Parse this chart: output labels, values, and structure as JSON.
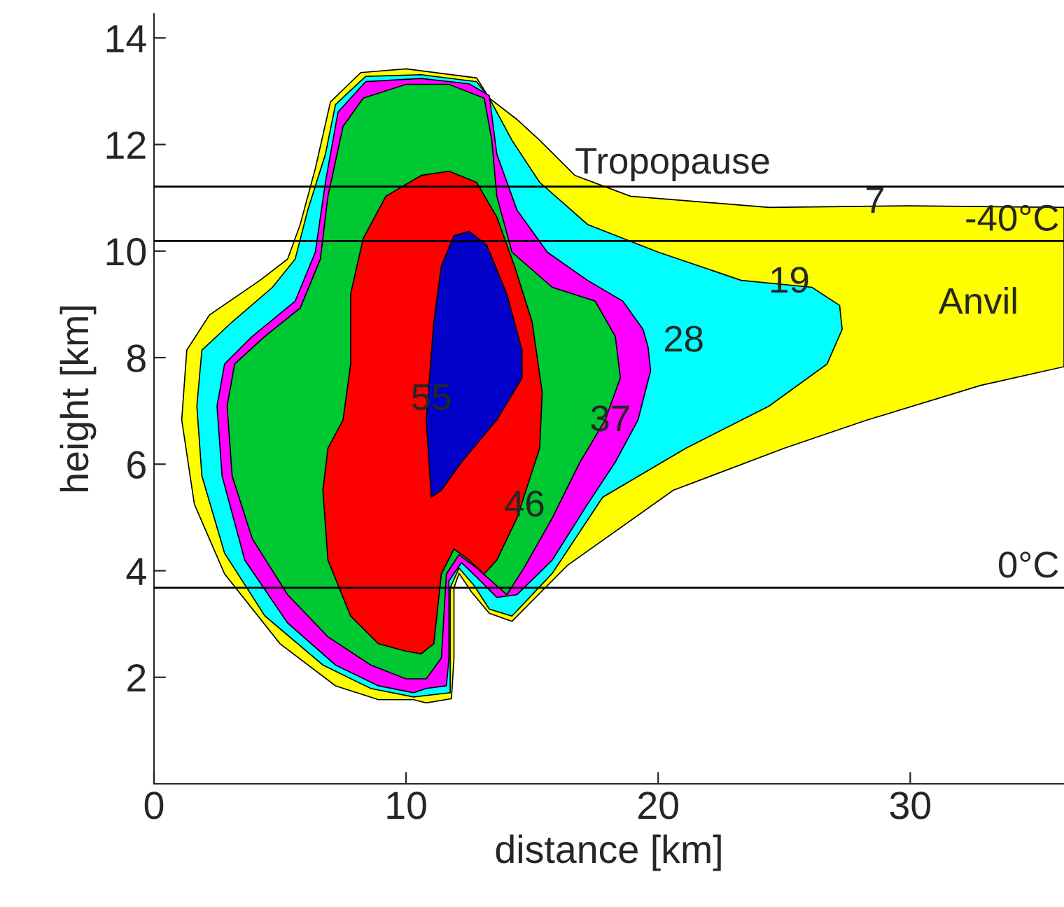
{
  "chart_data": {
    "type": "area",
    "xlabel": "distance [km]",
    "ylabel": "height [km]",
    "xlim": [
      0,
      36.1
    ],
    "ylim": [
      0,
      14.45
    ],
    "xticks": [
      0,
      10,
      20,
      30
    ],
    "yticks": [
      2,
      4,
      6,
      8,
      10,
      12,
      14
    ],
    "grid": false,
    "series": [
      {
        "color": "#ffff00",
        "x": [
          10.3,
          8.9,
          7.2,
          5.0,
          2.8,
          1.6,
          1.1,
          1.3,
          2.2,
          4.2,
          5.3,
          5.8,
          6.4,
          7.0,
          8.2,
          10.0,
          12.8,
          13.3,
          14.4,
          15.3,
          16.7,
          18.9,
          24.4,
          30.0,
          36.1,
          36.1,
          32.8,
          28.3,
          25.0,
          20.6,
          16.4,
          14.2,
          13.3,
          12.6,
          12.1,
          11.9,
          11.9,
          11.8,
          10.8
        ],
        "values": [
          1.58,
          1.58,
          1.84,
          2.63,
          3.94,
          5.25,
          6.83,
          8.14,
          8.8,
          9.45,
          9.85,
          10.5,
          11.55,
          12.8,
          13.35,
          13.42,
          13.25,
          12.87,
          12.47,
          12.08,
          11.42,
          11.03,
          10.82,
          10.85,
          10.82,
          7.83,
          7.48,
          6.83,
          6.3,
          5.51,
          4.1,
          3.05,
          3.2,
          3.6,
          3.95,
          3.68,
          2.36,
          1.6,
          1.52
        ]
      },
      {
        "color": "#00ffff",
        "x": [
          10.3,
          8.6,
          6.7,
          4.4,
          2.8,
          1.9,
          1.7,
          1.9,
          3.1,
          4.7,
          5.6,
          6.1,
          6.8,
          7.2,
          8.4,
          10.6,
          12.8,
          13.3,
          14.2,
          15.3,
          17.2,
          20.0,
          23.3,
          26.1,
          27.2,
          27.3,
          26.7,
          24.4,
          21.1,
          17.8,
          15.8,
          14.2,
          13.3,
          12.7,
          12.1,
          11.75,
          11.75,
          11.75
        ],
        "values": [
          1.63,
          1.79,
          2.23,
          3.15,
          4.33,
          5.78,
          7.09,
          8.14,
          8.67,
          9.32,
          9.85,
          10.77,
          11.82,
          12.75,
          13.28,
          13.31,
          13.18,
          12.87,
          12.08,
          11.29,
          10.5,
          9.98,
          9.45,
          9.32,
          8.98,
          8.53,
          7.88,
          7.09,
          6.3,
          5.38,
          3.95,
          3.15,
          3.28,
          3.72,
          4.05,
          3.68,
          2.36,
          1.71
        ]
      },
      {
        "color": "#ff00ff",
        "x": [
          10.3,
          8.9,
          7.2,
          5.3,
          3.6,
          2.7,
          2.5,
          2.8,
          3.9,
          5.6,
          6.4,
          6.8,
          7.3,
          8.4,
          10.6,
          12.5,
          13.3,
          13.6,
          14.4,
          15.6,
          17.2,
          18.6,
          19.4,
          19.6,
          19.7,
          19.2,
          18.3,
          17.2,
          15.8,
          14.4,
          13.6,
          12.8,
          12.2,
          11.7,
          11.7,
          11.6,
          10.8
        ],
        "values": [
          1.71,
          1.84,
          2.23,
          3.02,
          4.2,
          5.78,
          7.09,
          7.88,
          8.4,
          9.06,
          9.98,
          11.29,
          12.61,
          13.18,
          13.24,
          13.14,
          12.92,
          11.82,
          10.77,
          9.98,
          9.45,
          9.06,
          8.53,
          8.2,
          7.75,
          6.83,
          6.04,
          5.25,
          4.2,
          3.55,
          3.5,
          3.88,
          4.15,
          3.81,
          2.36,
          1.84,
          1.79
        ]
      },
      {
        "color": "#00c832",
        "x": [
          10.0,
          8.6,
          6.9,
          5.3,
          3.9,
          3.1,
          2.9,
          3.2,
          4.4,
          5.8,
          6.6,
          6.9,
          7.5,
          8.3,
          10.0,
          11.7,
          13.1,
          13.4,
          13.6,
          14.2,
          15.8,
          17.5,
          18.3,
          18.5,
          17.9,
          16.9,
          15.8,
          14.7,
          14.0,
          13.4,
          12.8,
          12.1,
          11.6,
          11.4,
          10.8
        ],
        "values": [
          1.97,
          2.23,
          2.76,
          3.55,
          4.6,
          5.78,
          7.09,
          7.88,
          8.4,
          8.93,
          9.85,
          11.03,
          12.34,
          12.87,
          13.13,
          13.13,
          12.87,
          12.08,
          11.03,
          9.98,
          9.32,
          9.06,
          8.4,
          7.62,
          6.83,
          6.04,
          4.99,
          4.07,
          3.55,
          3.8,
          4.05,
          4.3,
          3.94,
          2.36,
          1.97
        ]
      },
      {
        "color": "#ff0000",
        "x": [
          10.0,
          8.9,
          7.8,
          6.9,
          6.7,
          6.9,
          7.5,
          7.8,
          7.8,
          8.3,
          9.2,
          10.6,
          11.7,
          12.8,
          13.6,
          14.3,
          15.0,
          15.4,
          15.3,
          14.4,
          13.6,
          13.1,
          12.5,
          11.9,
          11.4,
          11.1,
          10.6
        ],
        "values": [
          2.49,
          2.63,
          3.15,
          4.2,
          5.51,
          6.3,
          6.83,
          7.88,
          9.19,
          10.24,
          11.03,
          11.42,
          11.5,
          11.29,
          10.64,
          9.72,
          8.67,
          7.35,
          6.3,
          4.99,
          4.2,
          3.94,
          4.2,
          4.41,
          3.94,
          2.63,
          2.44
        ]
      },
      {
        "color": "#0000c8",
        "x": [
          11.0,
          10.8,
          11.1,
          11.4,
          11.9,
          12.5,
          13.2,
          14.0,
          14.6,
          14.6,
          13.6,
          12.2,
          11.4
        ],
        "values": [
          5.38,
          6.83,
          8.67,
          9.72,
          10.29,
          10.37,
          10.11,
          9.19,
          8.14,
          7.62,
          6.83,
          6.04,
          5.51
        ]
      }
    ],
    "ref_lines": [
      {
        "axis": "y",
        "value": 11.21,
        "label": "Tropopause",
        "color": "#000000"
      },
      {
        "axis": "y",
        "value": 10.19,
        "label": "-40°C",
        "color": "#000000"
      },
      {
        "axis": "y",
        "value": 3.68,
        "label": "0°C",
        "color": "#000000"
      }
    ],
    "annotations": [
      {
        "text": "7",
        "x": 28.6,
        "y": 10.9
      },
      {
        "text": "19",
        "x": 25.2,
        "y": 9.4
      },
      "28",
      {
        "text": "37",
        "x": 18.1,
        "y": 6.8
      },
      {
        "text": "46",
        "x": 14.7,
        "y": 5.2
      },
      {
        "text": "55",
        "x": 11.0,
        "y": 7.2
      },
      "Anvil"
    ]
  }
}
